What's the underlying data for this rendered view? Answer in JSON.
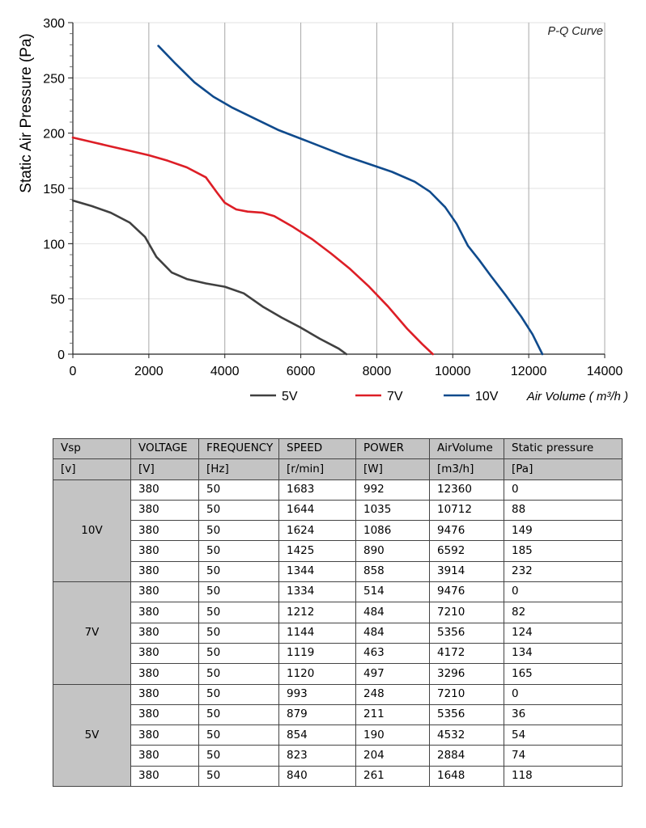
{
  "chart_data": {
    "type": "line",
    "title": "P-Q Curve",
    "xlabel": "Air Volume ( m³/h )",
    "ylabel": "Static Air Pressure  (Pa)",
    "xlim": [
      0,
      14000
    ],
    "ylim": [
      0,
      300
    ],
    "x_ticks": [
      0,
      2000,
      4000,
      6000,
      8000,
      10000,
      12000,
      14000
    ],
    "y_ticks": [
      0,
      50,
      100,
      150,
      200,
      250,
      300
    ],
    "grid": "vertical major lines, horizontal light lines",
    "legend_position": "bottom",
    "series": [
      {
        "name": "5V",
        "color": "#404040",
        "x": [
          0,
          500,
          1000,
          1500,
          1900,
          2200,
          2600,
          3000,
          3500,
          4000,
          4500,
          5000,
          5500,
          6000,
          6500,
          7000,
          7200
        ],
        "y": [
          139,
          134,
          128,
          119,
          106,
          88,
          74,
          68,
          64,
          61,
          55,
          43,
          33,
          24,
          14,
          5,
          0
        ]
      },
      {
        "name": "7V",
        "color": "#dd1e26",
        "x": [
          0,
          500,
          1000,
          1500,
          2000,
          2500,
          3000,
          3500,
          3800,
          4000,
          4300,
          4600,
          5000,
          5300,
          5800,
          6300,
          6800,
          7300,
          7800,
          8300,
          8800,
          9200,
          9476
        ],
        "y": [
          196,
          192,
          188,
          184,
          180,
          175,
          169,
          160,
          146,
          137,
          131,
          129,
          128,
          125,
          115,
          104,
          91,
          77,
          61,
          43,
          23,
          9,
          0
        ]
      },
      {
        "name": "10V",
        "color": "#0f4a8c",
        "x": [
          2250,
          2700,
          3200,
          3700,
          4200,
          4800,
          5400,
          6000,
          6600,
          7200,
          7800,
          8400,
          9000,
          9400,
          9800,
          10100,
          10400,
          10700,
          11000,
          11400,
          11800,
          12100,
          12360
        ],
        "y": [
          279,
          263,
          246,
          233,
          223,
          213,
          203,
          195,
          187,
          179,
          172,
          165,
          156,
          147,
          133,
          118,
          98,
          85,
          71,
          53,
          34,
          18,
          0
        ]
      }
    ]
  },
  "table": {
    "headers": [
      "Vsp",
      "VOLTAGE",
      "FREQUENCY",
      "SPEED",
      "POWER",
      "AirVolume",
      "Static pressure"
    ],
    "units": [
      "[v]",
      "[V]",
      "[Hz]",
      "[r/min]",
      "[W]",
      "[m3/h]",
      "[Pa]"
    ],
    "groups": [
      {
        "vsp": "10V",
        "rows": [
          [
            "380",
            "50",
            "1683",
            "992",
            "12360",
            "0"
          ],
          [
            "380",
            "50",
            "1644",
            "1035",
            "10712",
            "88"
          ],
          [
            "380",
            "50",
            "1624",
            "1086",
            "9476",
            "149"
          ],
          [
            "380",
            "50",
            "1425",
            "890",
            "6592",
            "185"
          ],
          [
            "380",
            "50",
            "1344",
            "858",
            "3914",
            "232"
          ]
        ]
      },
      {
        "vsp": "7V",
        "rows": [
          [
            "380",
            "50",
            "1334",
            "514",
            "9476",
            "0"
          ],
          [
            "380",
            "50",
            "1212",
            "484",
            "7210",
            "82"
          ],
          [
            "380",
            "50",
            "1144",
            "484",
            "5356",
            "124"
          ],
          [
            "380",
            "50",
            "1119",
            "463",
            "4172",
            "134"
          ],
          [
            "380",
            "50",
            "1120",
            "497",
            "3296",
            "165"
          ]
        ]
      },
      {
        "vsp": "5V",
        "rows": [
          [
            "380",
            "50",
            "993",
            "248",
            "7210",
            "0"
          ],
          [
            "380",
            "50",
            "879",
            "211",
            "5356",
            "36"
          ],
          [
            "380",
            "50",
            "854",
            "190",
            "4532",
            "54"
          ],
          [
            "380",
            "50",
            "823",
            "204",
            "2884",
            "74"
          ],
          [
            "380",
            "50",
            "840",
            "261",
            "1648",
            "118"
          ]
        ]
      }
    ]
  }
}
